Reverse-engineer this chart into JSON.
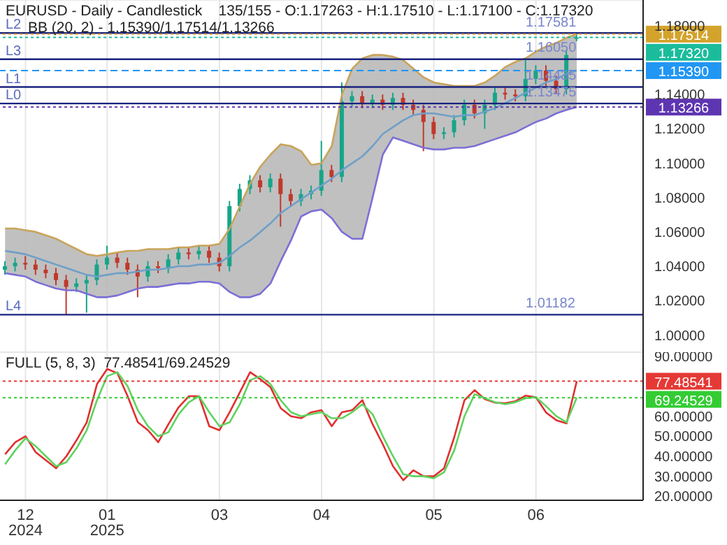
{
  "chart_data": [
    {
      "type": "candlestick",
      "title": "EURUSD - Daily - Candlestick    135/155 - O:1.17263 - H:1.17510 - L:1.17100 - C:1.17320",
      "annotations": [
        "BB (20, 2) - 1.15390/1.17514/1.13266",
        {
          "text": "1.17581",
          "y": 1.17581
        },
        {
          "text": "1.16050",
          "y": 1.1605
        },
        {
          "text": "1.14435",
          "y": 1.14435
        },
        {
          "text": "1.13475",
          "y": 1.13475
        },
        {
          "text": "1.01182",
          "y": 1.01182
        }
      ],
      "categories": [
        null,
        null,
        null,
        null,
        null,
        null,
        null,
        null,
        null,
        null,
        null,
        null,
        null,
        null,
        null,
        null,
        null,
        null,
        null,
        null,
        null,
        null,
        null,
        null,
        null,
        null,
        null,
        null,
        null,
        null,
        null,
        null,
        null,
        null,
        null,
        null,
        null,
        null,
        null,
        null,
        null,
        null,
        null,
        null,
        null,
        null,
        null,
        null,
        null,
        null,
        null,
        null,
        null,
        null,
        null,
        null,
        null,
        null,
        null,
        null,
        null,
        null,
        null
      ],
      "ohlc": [
        [
          1.038,
          1.043,
          1.035,
          1.04
        ],
        [
          1.04,
          1.045,
          1.037,
          1.042
        ],
        [
          1.042,
          1.046,
          1.038,
          1.041
        ],
        [
          1.041,
          1.044,
          1.035,
          1.038
        ],
        [
          1.038,
          1.041,
          1.033,
          1.036
        ],
        [
          1.036,
          1.039,
          1.029,
          1.032
        ],
        [
          1.032,
          1.035,
          1.012,
          1.028
        ],
        [
          1.028,
          1.033,
          1.025,
          1.03
        ],
        [
          1.03,
          1.035,
          1.013,
          1.032
        ],
        [
          1.032,
          1.044,
          1.029,
          1.041
        ],
        [
          1.041,
          1.052,
          1.038,
          1.045
        ],
        [
          1.045,
          1.048,
          1.039,
          1.042
        ],
        [
          1.042,
          1.045,
          1.035,
          1.038
        ],
        [
          1.038,
          1.041,
          1.022,
          1.034
        ],
        [
          1.034,
          1.043,
          1.031,
          1.04
        ],
        [
          1.04,
          1.043,
          1.036,
          1.039
        ],
        [
          1.039,
          1.047,
          1.036,
          1.044
        ],
        [
          1.044,
          1.051,
          1.041,
          1.048
        ],
        [
          1.048,
          1.051,
          1.044,
          1.047
        ],
        [
          1.047,
          1.052,
          1.044,
          1.049
        ],
        [
          1.049,
          1.052,
          1.042,
          1.045
        ],
        [
          1.045,
          1.048,
          1.037,
          1.04
        ],
        [
          1.04,
          1.078,
          1.037,
          1.075
        ],
        [
          1.075,
          1.088,
          1.072,
          1.085
        ],
        [
          1.085,
          1.093,
          1.082,
          1.09
        ],
        [
          1.09,
          1.093,
          1.083,
          1.086
        ],
        [
          1.086,
          1.094,
          1.083,
          1.091
        ],
        [
          1.091,
          1.094,
          1.063,
          1.082
        ],
        [
          1.082,
          1.085,
          1.075,
          1.078
        ],
        [
          1.078,
          1.085,
          1.075,
          1.082
        ],
        [
          1.082,
          1.087,
          1.079,
          1.084
        ],
        [
          1.084,
          1.113,
          1.081,
          1.096
        ],
        [
          1.096,
          1.099,
          1.089,
          1.092
        ],
        [
          1.092,
          1.147,
          1.089,
          1.136
        ],
        [
          1.136,
          1.142,
          1.133,
          1.139
        ],
        [
          1.139,
          1.142,
          1.132,
          1.135
        ],
        [
          1.135,
          1.14,
          1.132,
          1.137
        ],
        [
          1.137,
          1.14,
          1.131,
          1.134
        ],
        [
          1.134,
          1.141,
          1.131,
          1.138
        ],
        [
          1.138,
          1.141,
          1.131,
          1.134
        ],
        [
          1.134,
          1.137,
          1.128,
          1.131
        ],
        [
          1.131,
          1.134,
          1.107,
          1.124
        ],
        [
          1.124,
          1.127,
          1.114,
          1.117
        ],
        [
          1.117,
          1.121,
          1.114,
          1.118
        ],
        [
          1.118,
          1.128,
          1.115,
          1.125
        ],
        [
          1.125,
          1.137,
          1.122,
          1.134
        ],
        [
          1.134,
          1.137,
          1.126,
          1.129
        ],
        [
          1.129,
          1.137,
          1.12,
          1.134
        ],
        [
          1.134,
          1.144,
          1.131,
          1.141
        ],
        [
          1.141,
          1.144,
          1.137,
          1.14
        ],
        [
          1.14,
          1.143,
          1.136,
          1.139
        ],
        [
          1.139,
          1.161,
          1.136,
          1.149
        ],
        [
          1.149,
          1.157,
          1.146,
          1.154
        ],
        [
          1.154,
          1.157,
          1.145,
          1.148
        ],
        [
          1.148,
          1.151,
          1.14,
          1.143
        ],
        [
          1.143,
          1.166,
          1.14,
          1.163
        ],
        [
          1.17263,
          1.1751,
          1.171,
          1.1732
        ],
        null,
        null,
        null,
        null,
        null,
        null
      ],
      "series": [
        {
          "type": "line",
          "color": "#6f9fc8",
          "values": [
            1.049,
            1.048,
            1.047,
            1.045,
            1.043,
            1.041,
            1.039,
            1.037,
            1.035,
            1.034,
            1.035,
            1.036,
            1.036,
            1.037,
            1.038,
            1.038,
            1.039,
            1.04,
            1.04,
            1.041,
            1.041,
            1.042,
            1.046,
            1.051,
            1.055,
            1.06,
            1.065,
            1.071,
            1.075,
            1.079,
            1.083,
            1.087,
            1.091,
            1.096,
            1.1,
            1.104,
            1.11,
            1.117,
            1.121,
            1.125,
            1.128,
            1.129,
            1.129,
            1.128,
            1.127,
            1.128,
            1.128,
            1.13,
            1.132,
            1.135,
            1.138,
            1.141,
            1.144,
            1.147,
            1.149,
            1.152,
            1.1539,
            null,
            null,
            null,
            null,
            null,
            null
          ],
          "upper": [
            1.062,
            1.062,
            1.061,
            1.06,
            1.058,
            1.056,
            1.053,
            1.05,
            1.047,
            1.046,
            1.047,
            1.048,
            1.049,
            1.049,
            1.05,
            1.05,
            1.05,
            1.051,
            1.051,
            1.052,
            1.052,
            1.053,
            1.062,
            1.075,
            1.088,
            1.098,
            1.105,
            1.111,
            1.11,
            1.107,
            1.099,
            1.1,
            1.11,
            1.14,
            1.155,
            1.161,
            1.163,
            1.163,
            1.162,
            1.16,
            1.155,
            1.15,
            1.147,
            1.146,
            1.145,
            1.145,
            1.145,
            1.147,
            1.151,
            1.156,
            1.159,
            1.161,
            1.165,
            1.168,
            1.17,
            1.173,
            1.17514,
            null,
            null,
            null,
            null,
            null,
            null
          ],
          "lower": [
            1.036,
            1.035,
            1.034,
            1.031,
            1.029,
            1.027,
            1.026,
            1.026,
            1.024,
            1.022,
            1.022,
            1.023,
            1.025,
            1.027,
            1.028,
            1.028,
            1.029,
            1.03,
            1.03,
            1.031,
            1.031,
            1.03,
            1.025,
            1.022,
            1.022,
            1.024,
            1.03,
            1.043,
            1.055,
            1.069,
            1.072,
            1.073,
            1.068,
            1.06,
            1.056,
            1.056,
            1.08,
            1.105,
            1.115,
            1.113,
            1.111,
            1.109,
            1.108,
            1.108,
            1.109,
            1.109,
            1.11,
            1.112,
            1.114,
            1.116,
            1.118,
            1.121,
            1.124,
            1.126,
            1.129,
            1.131,
            1.13266,
            null,
            null,
            null,
            null,
            null,
            null
          ]
        },
        {
          "type": "line",
          "color": "#c9a45a",
          "values": [
            1.062,
            1.062,
            1.061,
            1.06,
            1.058,
            1.056,
            1.053,
            1.05,
            1.047,
            1.046,
            1.047,
            1.048,
            1.049,
            1.049,
            1.05,
            1.05,
            1.05,
            1.051,
            1.051,
            1.052,
            1.052,
            1.053,
            1.062,
            1.075,
            1.088,
            1.098,
            1.105,
            1.111,
            1.11,
            1.107,
            1.099,
            1.1,
            1.11,
            1.14,
            1.155,
            1.161,
            1.163,
            1.163,
            1.162,
            1.16,
            1.155,
            1.15,
            1.147,
            1.146,
            1.145,
            1.145,
            1.145,
            1.147,
            1.151,
            1.156,
            1.159,
            1.161,
            1.165,
            1.168,
            1.17,
            1.173,
            1.17514,
            null,
            null,
            null,
            null,
            null,
            null
          ]
        },
        {
          "type": "line",
          "color": "#7b6fd6",
          "values": [
            1.036,
            1.035,
            1.034,
            1.031,
            1.029,
            1.027,
            1.026,
            1.026,
            1.024,
            1.022,
            1.022,
            1.023,
            1.025,
            1.027,
            1.028,
            1.028,
            1.029,
            1.03,
            1.03,
            1.031,
            1.031,
            1.03,
            1.025,
            1.022,
            1.022,
            1.024,
            1.03,
            1.043,
            1.055,
            1.069,
            1.072,
            1.073,
            1.068,
            1.06,
            1.056,
            1.056,
            1.08,
            1.105,
            1.115,
            1.113,
            1.111,
            1.109,
            1.108,
            1.108,
            1.109,
            1.109,
            1.11,
            1.112,
            1.114,
            1.116,
            1.118,
            1.121,
            1.124,
            1.126,
            1.129,
            1.131,
            1.13266,
            null,
            null,
            null,
            null,
            null,
            null
          ]
        }
      ],
      "ref_lines": [
        {
          "axis": "y",
          "value": 1.17581,
          "label": "L2",
          "color": "#1a237e",
          "line_style": "solid"
        },
        {
          "axis": "y",
          "value": 1.1605,
          "label": "L3",
          "color": "#1a237e",
          "line_style": "solid"
        },
        {
          "axis": "y",
          "value": 1.14435,
          "label": "L1",
          "color": "#1a237e",
          "line_style": "solid"
        },
        {
          "axis": "y",
          "value": 1.13475,
          "label": "L0",
          "color": "#1a237e",
          "line_style": "solid"
        },
        {
          "axis": "y",
          "value": 1.01182,
          "label": "L4",
          "color": "#1a237e",
          "line_style": "solid"
        },
        {
          "axis": "y",
          "value": 1.17514,
          "label": "1.17514",
          "color": "#d4a32c",
          "line_style": "dotted"
        },
        {
          "axis": "y",
          "value": 1.1732,
          "label": "1.17320",
          "color": "#1abc9c",
          "line_style": "dotted"
        },
        {
          "axis": "y",
          "value": 1.1539,
          "label": "1.15390",
          "color": "#2196f3",
          "line_style": "dashed"
        },
        {
          "axis": "y",
          "value": 1.13266,
          "label": "1.13266",
          "color": "#5e35b1",
          "line_style": "dotted"
        }
      ],
      "ylim": [
        0.99,
        1.195
      ],
      "yticks": [
        {
          "value": 1,
          "label": "1.00000"
        },
        {
          "value": 1.02,
          "label": "1.02000"
        },
        {
          "value": 1.04,
          "label": "1.04000"
        },
        {
          "value": 1.06,
          "label": "1.06000"
        },
        {
          "value": 1.08,
          "label": "1.08000"
        },
        {
          "value": 1.1,
          "label": "1.10000"
        },
        {
          "value": 1.12,
          "label": "1.12000"
        },
        {
          "value": 1.14,
          "label": "1.14000"
        },
        {
          "value": 1.18,
          "label": "1.18000"
        }
      ],
      "grid": true,
      "tick_labels": "y"
    },
    {
      "type": "line",
      "title": "FULL (5, 8, 3)  77.48541/69.24529",
      "categories": [
        null,
        null,
        "12\n2024",
        null,
        null,
        null,
        null,
        null,
        null,
        null,
        "01\n2025",
        null,
        null,
        null,
        null,
        null,
        null,
        null,
        null,
        null,
        null,
        "03",
        null,
        null,
        null,
        null,
        null,
        null,
        null,
        null,
        null,
        "04",
        null,
        null,
        null,
        null,
        null,
        null,
        null,
        null,
        null,
        null,
        "05",
        null,
        null,
        null,
        null,
        null,
        null,
        null,
        null,
        null,
        "06",
        null,
        null,
        null,
        null,
        null,
        null,
        null,
        null,
        null,
        null
      ],
      "series": [
        {
          "color": "#e03030",
          "values": [
            41,
            47,
            50,
            42,
            38,
            34,
            40,
            48,
            57,
            76,
            83.6,
            81.5,
            70,
            57,
            53,
            47,
            56,
            64.5,
            70,
            70,
            55,
            53,
            62,
            72,
            82,
            78.5,
            74.5,
            64,
            60,
            59,
            62,
            63,
            55,
            62,
            63,
            68,
            56,
            46,
            35,
            28,
            33,
            30,
            30,
            34,
            49.5,
            68,
            73,
            68.5,
            66.8,
            66.5,
            67.5,
            70.3,
            69.5,
            61.8,
            58,
            56.4,
            77.5,
            null,
            null,
            null,
            null,
            null,
            null
          ]
        },
        {
          "color": "#5fd35f",
          "values": [
            36,
            43,
            49,
            45,
            40,
            35,
            37,
            44,
            53,
            68,
            80,
            82,
            75,
            63,
            55,
            50,
            52,
            61,
            67,
            70,
            62,
            55,
            57,
            66,
            78,
            80,
            76,
            68,
            62,
            60,
            61,
            62,
            59,
            59,
            62,
            66,
            61,
            50,
            40,
            31,
            30,
            30,
            29,
            32,
            43,
            60,
            71,
            69,
            67,
            66,
            67,
            69,
            69.5,
            65,
            60,
            57,
            69.2,
            null,
            null,
            null,
            null,
            null,
            null
          ]
        }
      ],
      "ref_lines": [
        {
          "axis": "y",
          "value": 77.48541,
          "label": "77.48541",
          "color": "#e53935",
          "line_style": "dotted"
        },
        {
          "axis": "y",
          "value": 69.24529,
          "label": "69.24529",
          "color": "#33cc33",
          "line_style": "dotted"
        }
      ],
      "ylim": [
        18,
        92
      ],
      "yticks": [
        {
          "value": 20,
          "label": "20.00000"
        },
        {
          "value": 30,
          "label": "30.00000"
        },
        {
          "value": 40,
          "label": "40.00000"
        },
        {
          "value": 50,
          "label": "50.00000"
        },
        {
          "value": 60,
          "label": "60.00000"
        },
        {
          "value": 70,
          "label": null
        },
        {
          "value": 80,
          "label": null
        },
        {
          "value": 90,
          "label": "90.00000"
        }
      ],
      "grid": true
    }
  ]
}
